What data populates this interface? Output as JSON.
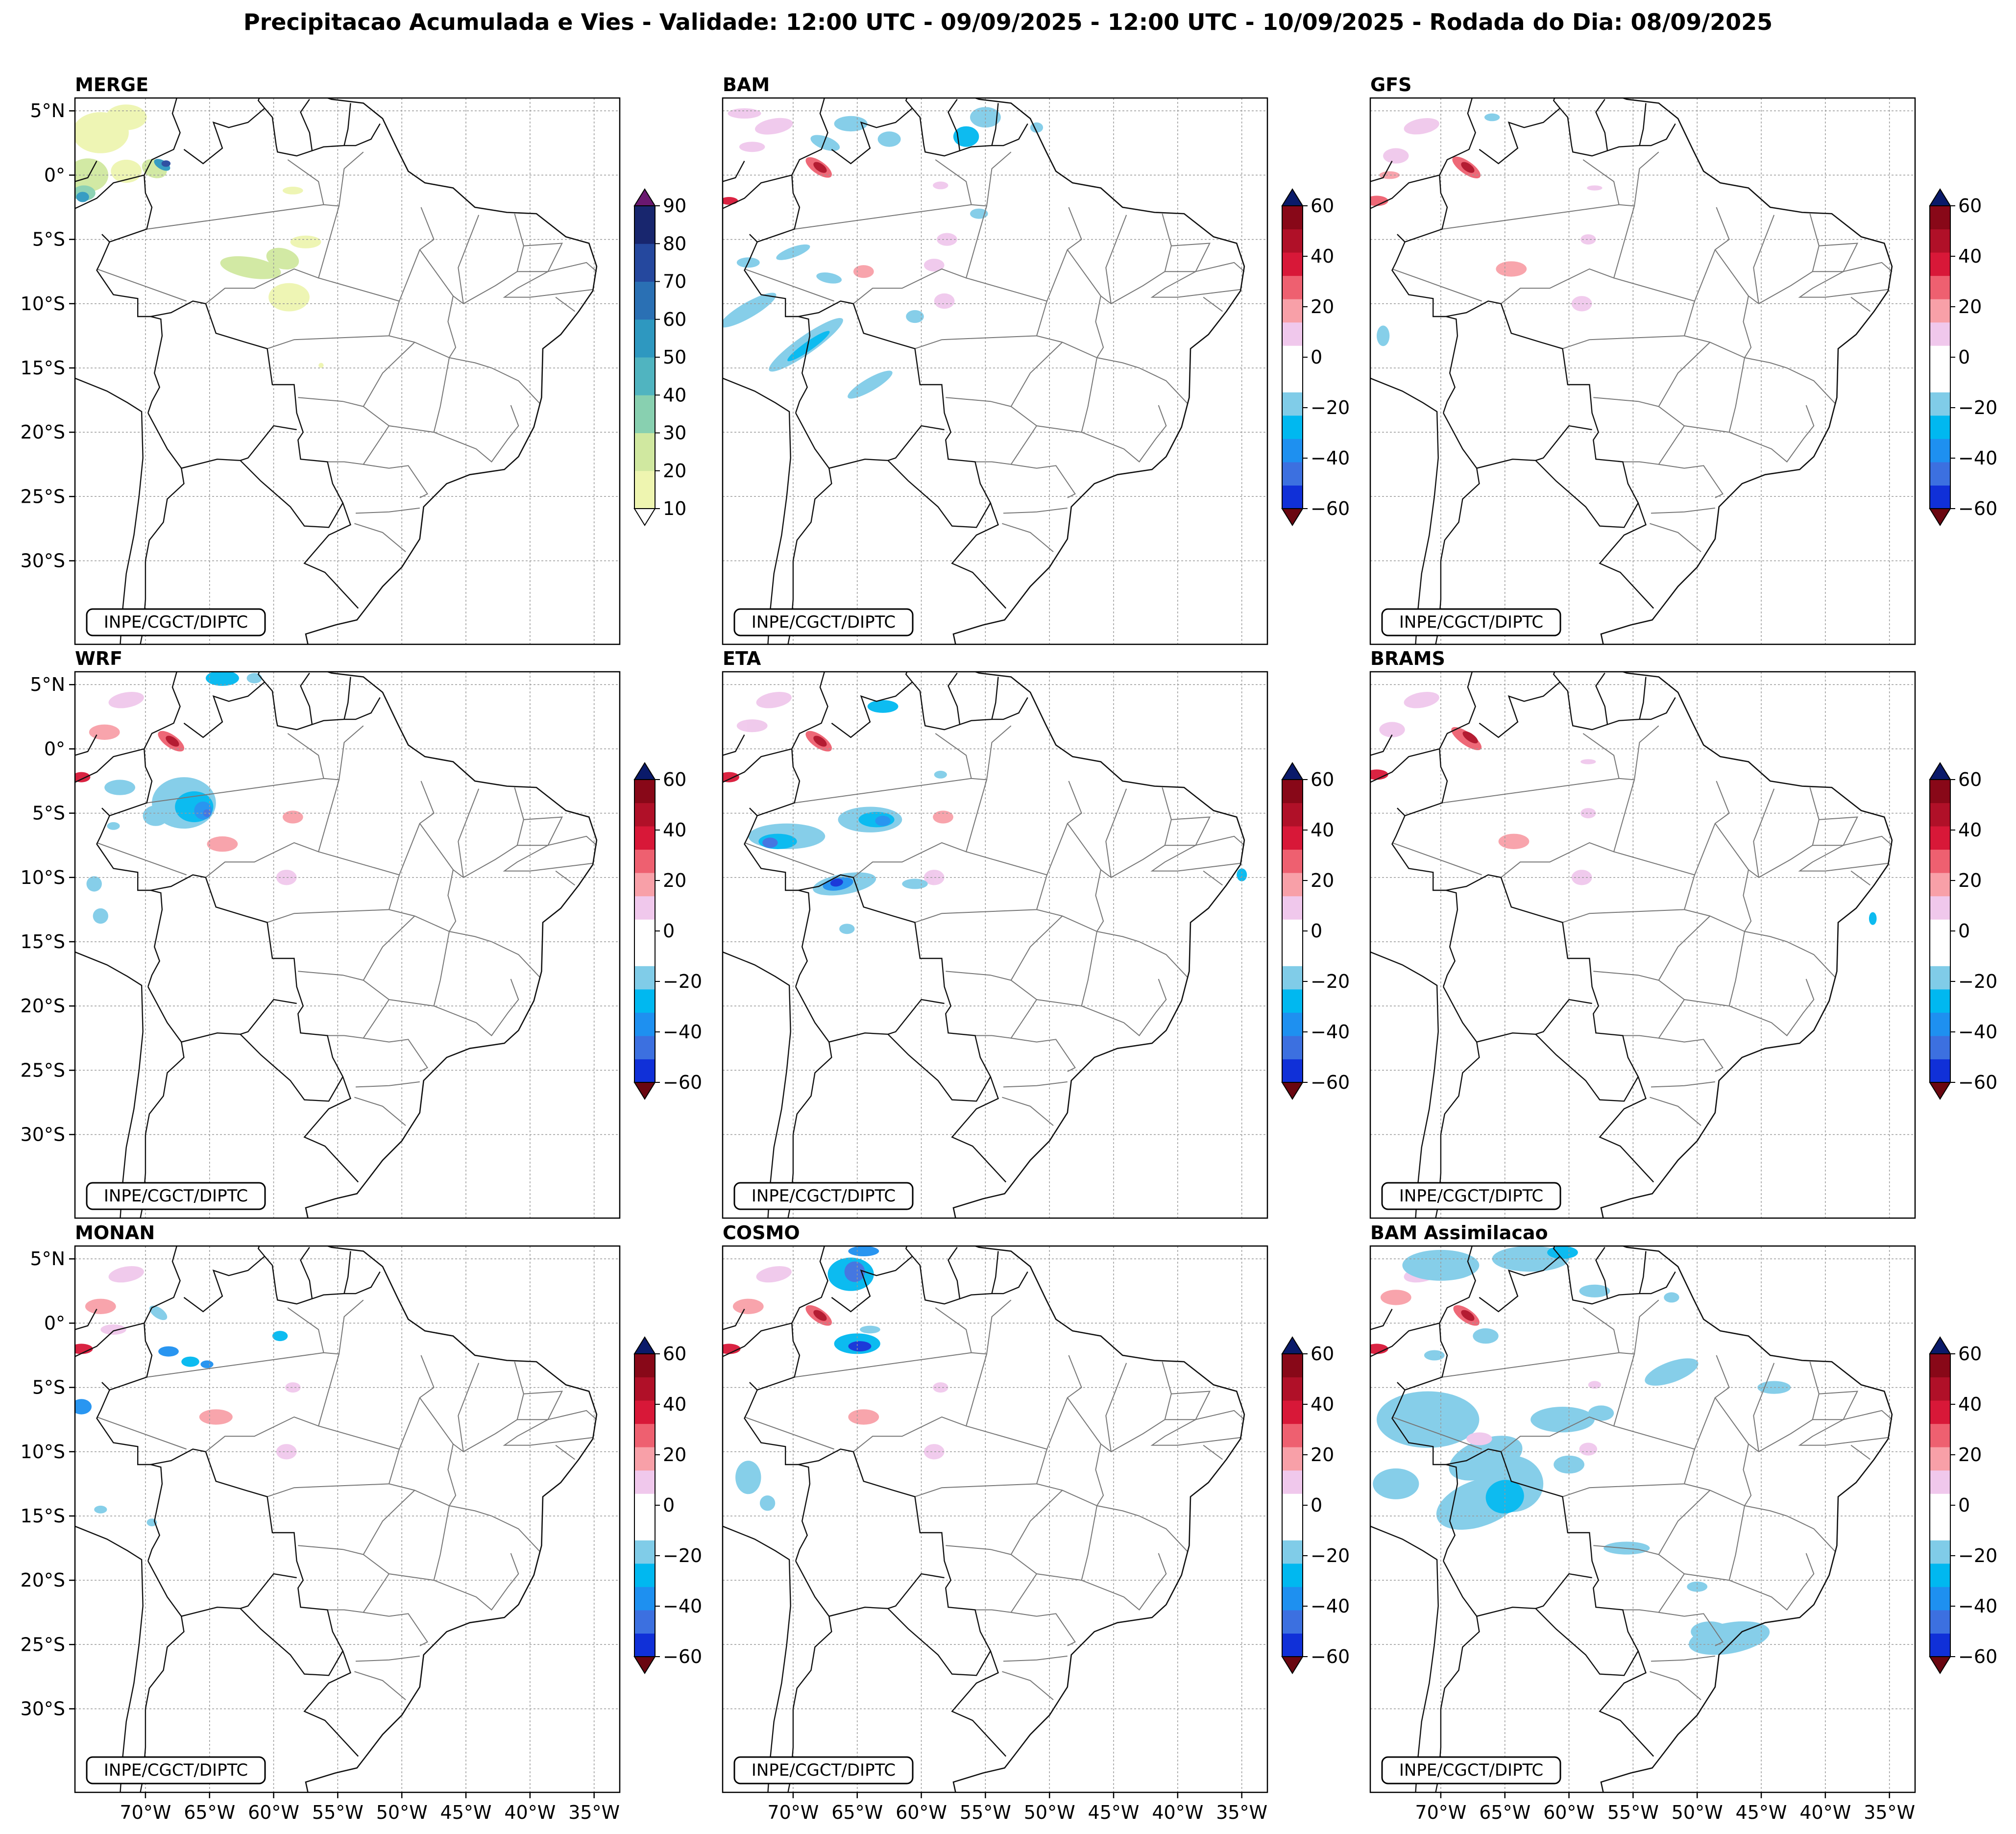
{
  "title": "Precipitacao Acumulada e Vies - Validade: 12:00 UTC - 09/09/2025 - 12:00 UTC - 10/09/2025 - Rodada do Dia: 08/09/2025",
  "credit": "INPE/CGCT/DIPTC",
  "lat_labels": [
    "5°N",
    "0°",
    "5°S",
    "10°S",
    "15°S",
    "20°S",
    "25°S",
    "30°S"
  ],
  "lon_labels": [
    "70°W",
    "65°W",
    "60°W",
    "55°W",
    "50°W",
    "45°W",
    "40°W",
    "35°W"
  ],
  "colorbars": {
    "merge": {
      "ticks": [
        "10",
        "20",
        "30",
        "40",
        "50",
        "60",
        "70",
        "80",
        "90"
      ],
      "colors": [
        "#eef5b0",
        "#d0e8a0",
        "#88d0b0",
        "#50b4c0",
        "#2e98c0",
        "#2a70b4",
        "#25489e",
        "#18266e"
      ],
      "max_extend_color": "#6a1870",
      "min_extend_color": "#ffffff"
    },
    "bias": {
      "ticks": [
        "60",
        "40",
        "20",
        "0",
        "−20",
        "−40",
        "−60"
      ],
      "colors": [
        "#1030d8",
        "#3c70e0",
        "#1e90f0",
        "#00b8f0",
        "#80cce8",
        "#ffffff",
        "#ffffff",
        "#f0c8ec",
        "#f8a0a8",
        "#ee6070",
        "#d81838",
        "#b01028",
        "#880818"
      ],
      "max_extend_color": "#0a1a6a",
      "min_extend_color": "#6a0610"
    }
  },
  "panels": [
    {
      "id": "merge",
      "title": "MERGE",
      "type": "merge"
    },
    {
      "id": "bam",
      "title": "BAM",
      "type": "bias"
    },
    {
      "id": "gfs",
      "title": "GFS",
      "type": "bias"
    },
    {
      "id": "wrf",
      "title": "WRF",
      "type": "bias"
    },
    {
      "id": "eta",
      "title": "ETA",
      "type": "bias"
    },
    {
      "id": "brams",
      "title": "BRAMS",
      "type": "bias"
    },
    {
      "id": "monan",
      "title": "MONAN",
      "type": "bias"
    },
    {
      "id": "cosmo",
      "title": "COSMO",
      "type": "bias"
    },
    {
      "id": "bam-assim",
      "title": "BAM Assimilacao",
      "type": "bias"
    }
  ]
}
